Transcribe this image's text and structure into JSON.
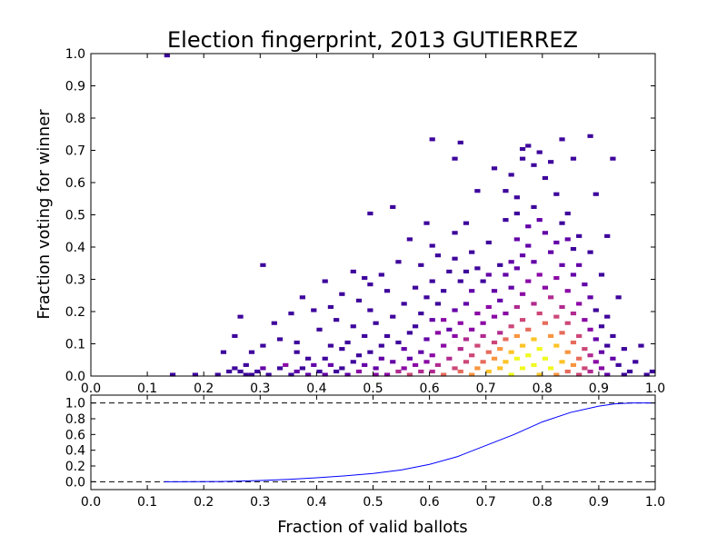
{
  "chart_data": [
    {
      "type": "heatmap",
      "title": "Election fingerprint, 2013 GUTIERREZ",
      "xlabel": "",
      "ylabel": "Fraction voting for winner",
      "xlim": [
        0.0,
        1.0
      ],
      "ylim": [
        0.0,
        1.0
      ],
      "xticks": [
        "0.0",
        "0.1",
        "0.2",
        "0.3",
        "0.4",
        "0.5",
        "0.6",
        "0.7",
        "0.8",
        "0.9",
        "1.0"
      ],
      "yticks": [
        "0.0",
        "0.1",
        "0.2",
        "0.3",
        "0.4",
        "0.5",
        "0.6",
        "0.7",
        "0.8",
        "0.9",
        "1.0"
      ],
      "colormap": "plasma",
      "bin_width": 0.01,
      "bin_height": 0.01,
      "cells": [
        [
          0.13,
          0.99,
          1
        ],
        [
          0.14,
          0.0,
          1
        ],
        [
          0.18,
          0.0,
          1
        ],
        [
          0.22,
          0.0,
          1
        ],
        [
          0.23,
          0.07,
          1
        ],
        [
          0.24,
          0.01,
          1
        ],
        [
          0.25,
          0.02,
          1
        ],
        [
          0.25,
          0.12,
          1
        ],
        [
          0.26,
          0.18,
          1
        ],
        [
          0.26,
          0.01,
          1
        ],
        [
          0.27,
          0.03,
          1
        ],
        [
          0.27,
          0.0,
          1
        ],
        [
          0.28,
          0.07,
          1
        ],
        [
          0.28,
          0.0,
          1
        ],
        [
          0.29,
          0.01,
          1
        ],
        [
          0.3,
          0.34,
          1
        ],
        [
          0.3,
          0.09,
          1
        ],
        [
          0.3,
          0.02,
          2
        ],
        [
          0.31,
          0.0,
          1
        ],
        [
          0.32,
          0.16,
          1
        ],
        [
          0.33,
          0.11,
          1
        ],
        [
          0.33,
          0.02,
          1
        ],
        [
          0.34,
          0.03,
          3
        ],
        [
          0.35,
          0.19,
          1
        ],
        [
          0.35,
          0.0,
          1
        ],
        [
          0.36,
          0.07,
          1
        ],
        [
          0.36,
          0.1,
          1
        ],
        [
          0.36,
          0.01,
          2
        ],
        [
          0.37,
          0.24,
          1
        ],
        [
          0.37,
          0.02,
          1
        ],
        [
          0.38,
          0.05,
          1
        ],
        [
          0.38,
          0.0,
          2
        ],
        [
          0.39,
          0.2,
          1
        ],
        [
          0.39,
          0.03,
          2
        ],
        [
          0.4,
          0.14,
          1
        ],
        [
          0.4,
          0.01,
          1
        ],
        [
          0.41,
          0.29,
          1
        ],
        [
          0.41,
          0.05,
          1
        ],
        [
          0.41,
          0.0,
          2
        ],
        [
          0.42,
          0.21,
          1
        ],
        [
          0.42,
          0.09,
          1
        ],
        [
          0.42,
          0.03,
          2
        ],
        [
          0.43,
          0.17,
          1
        ],
        [
          0.43,
          0.01,
          1
        ],
        [
          0.44,
          0.25,
          1
        ],
        [
          0.44,
          0.08,
          1
        ],
        [
          0.44,
          0.02,
          1
        ],
        [
          0.45,
          0.1,
          1
        ],
        [
          0.45,
          0.0,
          2
        ],
        [
          0.46,
          0.32,
          1
        ],
        [
          0.46,
          0.15,
          1
        ],
        [
          0.46,
          0.04,
          1
        ],
        [
          0.47,
          0.23,
          1
        ],
        [
          0.47,
          0.06,
          1
        ],
        [
          0.47,
          0.01,
          3
        ],
        [
          0.48,
          0.3,
          1
        ],
        [
          0.48,
          0.12,
          1
        ],
        [
          0.48,
          0.03,
          2
        ],
        [
          0.49,
          0.5,
          1
        ],
        [
          0.49,
          0.28,
          1
        ],
        [
          0.49,
          0.2,
          1
        ],
        [
          0.49,
          0.07,
          1
        ],
        [
          0.5,
          0.16,
          1
        ],
        [
          0.5,
          0.02,
          2
        ],
        [
          0.5,
          0.0,
          3
        ],
        [
          0.51,
          0.31,
          1
        ],
        [
          0.51,
          0.09,
          1
        ],
        [
          0.51,
          0.05,
          2
        ],
        [
          0.52,
          0.26,
          1
        ],
        [
          0.52,
          0.12,
          1
        ],
        [
          0.52,
          0.0,
          3
        ],
        [
          0.53,
          0.52,
          1
        ],
        [
          0.53,
          0.18,
          1
        ],
        [
          0.53,
          0.04,
          2
        ],
        [
          0.54,
          0.35,
          1
        ],
        [
          0.54,
          0.1,
          1
        ],
        [
          0.54,
          0.01,
          4
        ],
        [
          0.55,
          0.22,
          1
        ],
        [
          0.55,
          0.08,
          2
        ],
        [
          0.55,
          0.02,
          3
        ],
        [
          0.56,
          0.42,
          1
        ],
        [
          0.56,
          0.13,
          1
        ],
        [
          0.56,
          0.05,
          2
        ],
        [
          0.56,
          0.0,
          5
        ],
        [
          0.57,
          0.27,
          1
        ],
        [
          0.57,
          0.15,
          1
        ],
        [
          0.57,
          0.03,
          3
        ],
        [
          0.58,
          0.34,
          1
        ],
        [
          0.58,
          0.19,
          1
        ],
        [
          0.58,
          0.07,
          2
        ],
        [
          0.58,
          0.01,
          4
        ],
        [
          0.59,
          0.47,
          1
        ],
        [
          0.59,
          0.24,
          1
        ],
        [
          0.59,
          0.11,
          2
        ],
        [
          0.59,
          0.04,
          3
        ],
        [
          0.6,
          0.73,
          1
        ],
        [
          0.6,
          0.4,
          1
        ],
        [
          0.6,
          0.29,
          1
        ],
        [
          0.6,
          0.17,
          2
        ],
        [
          0.6,
          0.06,
          3
        ],
        [
          0.6,
          0.01,
          4
        ],
        [
          0.61,
          0.37,
          1
        ],
        [
          0.61,
          0.22,
          1
        ],
        [
          0.61,
          0.13,
          3
        ],
        [
          0.61,
          0.03,
          4
        ],
        [
          0.62,
          0.26,
          1
        ],
        [
          0.62,
          0.17,
          3
        ],
        [
          0.62,
          0.09,
          3
        ],
        [
          0.62,
          0.0,
          6
        ],
        [
          0.63,
          0.32,
          1
        ],
        [
          0.63,
          0.14,
          2
        ],
        [
          0.63,
          0.05,
          4
        ],
        [
          0.64,
          0.67,
          1
        ],
        [
          0.64,
          0.44,
          1
        ],
        [
          0.64,
          0.36,
          1
        ],
        [
          0.64,
          0.2,
          2
        ],
        [
          0.64,
          0.12,
          3
        ],
        [
          0.64,
          0.02,
          5
        ],
        [
          0.65,
          0.72,
          1
        ],
        [
          0.65,
          0.29,
          1
        ],
        [
          0.65,
          0.16,
          3
        ],
        [
          0.65,
          0.08,
          4
        ],
        [
          0.65,
          0.01,
          6
        ],
        [
          0.66,
          0.47,
          1
        ],
        [
          0.66,
          0.32,
          1
        ],
        [
          0.66,
          0.22,
          2
        ],
        [
          0.66,
          0.11,
          4
        ],
        [
          0.66,
          0.04,
          5
        ],
        [
          0.67,
          0.38,
          1
        ],
        [
          0.67,
          0.26,
          2
        ],
        [
          0.67,
          0.14,
          3
        ],
        [
          0.67,
          0.06,
          5
        ],
        [
          0.67,
          0.0,
          7
        ],
        [
          0.68,
          0.57,
          1
        ],
        [
          0.68,
          0.33,
          1
        ],
        [
          0.68,
          0.19,
          3
        ],
        [
          0.68,
          0.09,
          5
        ],
        [
          0.68,
          0.02,
          7
        ],
        [
          0.69,
          0.29,
          1
        ],
        [
          0.69,
          0.16,
          3
        ],
        [
          0.69,
          0.12,
          4
        ],
        [
          0.69,
          0.04,
          6
        ],
        [
          0.7,
          0.41,
          1
        ],
        [
          0.7,
          0.31,
          2
        ],
        [
          0.7,
          0.21,
          3
        ],
        [
          0.7,
          0.07,
          6
        ],
        [
          0.7,
          0.01,
          8
        ],
        [
          0.71,
          0.64,
          1
        ],
        [
          0.71,
          0.26,
          2
        ],
        [
          0.71,
          0.18,
          3
        ],
        [
          0.71,
          0.1,
          5
        ],
        [
          0.71,
          0.05,
          7
        ],
        [
          0.72,
          0.34,
          1
        ],
        [
          0.72,
          0.23,
          2
        ],
        [
          0.72,
          0.13,
          4
        ],
        [
          0.72,
          0.08,
          7
        ],
        [
          0.72,
          0.02,
          8
        ],
        [
          0.73,
          0.57,
          1
        ],
        [
          0.73,
          0.48,
          1
        ],
        [
          0.73,
          0.31,
          2
        ],
        [
          0.73,
          0.19,
          3
        ],
        [
          0.73,
          0.11,
          6
        ],
        [
          0.73,
          0.04,
          8
        ],
        [
          0.74,
          0.62,
          1
        ],
        [
          0.74,
          0.35,
          2
        ],
        [
          0.74,
          0.27,
          2
        ],
        [
          0.74,
          0.15,
          5
        ],
        [
          0.74,
          0.07,
          8
        ],
        [
          0.74,
          0.0,
          9
        ],
        [
          0.75,
          0.55,
          1
        ],
        [
          0.75,
          0.5,
          1
        ],
        [
          0.75,
          0.42,
          2
        ],
        [
          0.75,
          0.33,
          2
        ],
        [
          0.75,
          0.21,
          4
        ],
        [
          0.75,
          0.12,
          7
        ],
        [
          0.75,
          0.05,
          9
        ],
        [
          0.76,
          0.7,
          1
        ],
        [
          0.76,
          0.67,
          1
        ],
        [
          0.76,
          0.37,
          2
        ],
        [
          0.76,
          0.25,
          3
        ],
        [
          0.76,
          0.17,
          5
        ],
        [
          0.76,
          0.09,
          8
        ],
        [
          0.76,
          0.02,
          9
        ],
        [
          0.77,
          0.71,
          1
        ],
        [
          0.77,
          0.46,
          2
        ],
        [
          0.77,
          0.4,
          2
        ],
        [
          0.77,
          0.29,
          3
        ],
        [
          0.77,
          0.14,
          6
        ],
        [
          0.77,
          0.06,
          9
        ],
        [
          0.78,
          0.65,
          1
        ],
        [
          0.78,
          0.52,
          1
        ],
        [
          0.78,
          0.35,
          2
        ],
        [
          0.78,
          0.22,
          4
        ],
        [
          0.78,
          0.11,
          8
        ],
        [
          0.78,
          0.03,
          9
        ],
        [
          0.79,
          0.69,
          1
        ],
        [
          0.79,
          0.48,
          2
        ],
        [
          0.79,
          0.31,
          3
        ],
        [
          0.79,
          0.19,
          5
        ],
        [
          0.79,
          0.08,
          9
        ],
        [
          0.79,
          0.0,
          8
        ],
        [
          0.8,
          0.61,
          1
        ],
        [
          0.8,
          0.44,
          2
        ],
        [
          0.8,
          0.27,
          3
        ],
        [
          0.8,
          0.16,
          6
        ],
        [
          0.8,
          0.05,
          9
        ],
        [
          0.81,
          0.66,
          1
        ],
        [
          0.81,
          0.38,
          2
        ],
        [
          0.81,
          0.24,
          4
        ],
        [
          0.81,
          0.12,
          7
        ],
        [
          0.81,
          0.02,
          9
        ],
        [
          0.82,
          0.56,
          1
        ],
        [
          0.82,
          0.41,
          2
        ],
        [
          0.82,
          0.3,
          3
        ],
        [
          0.82,
          0.18,
          5
        ],
        [
          0.82,
          0.09,
          8
        ],
        [
          0.82,
          0.0,
          7
        ],
        [
          0.83,
          0.73,
          1
        ],
        [
          0.83,
          0.47,
          1
        ],
        [
          0.83,
          0.34,
          2
        ],
        [
          0.83,
          0.21,
          4
        ],
        [
          0.83,
          0.13,
          6
        ],
        [
          0.83,
          0.04,
          8
        ],
        [
          0.84,
          0.5,
          1
        ],
        [
          0.84,
          0.42,
          2
        ],
        [
          0.84,
          0.26,
          3
        ],
        [
          0.84,
          0.16,
          5
        ],
        [
          0.84,
          0.07,
          7
        ],
        [
          0.84,
          0.01,
          6
        ],
        [
          0.85,
          0.67,
          1
        ],
        [
          0.85,
          0.39,
          1
        ],
        [
          0.85,
          0.31,
          2
        ],
        [
          0.85,
          0.19,
          4
        ],
        [
          0.85,
          0.1,
          6
        ],
        [
          0.85,
          0.03,
          7
        ],
        [
          0.86,
          0.43,
          1
        ],
        [
          0.86,
          0.34,
          2
        ],
        [
          0.86,
          0.22,
          3
        ],
        [
          0.86,
          0.12,
          5
        ],
        [
          0.86,
          0.05,
          6
        ],
        [
          0.86,
          0.0,
          5
        ],
        [
          0.87,
          0.28,
          2
        ],
        [
          0.87,
          0.17,
          3
        ],
        [
          0.87,
          0.08,
          5
        ],
        [
          0.87,
          0.02,
          5
        ],
        [
          0.88,
          0.74,
          1
        ],
        [
          0.88,
          0.38,
          1
        ],
        [
          0.88,
          0.24,
          2
        ],
        [
          0.88,
          0.14,
          3
        ],
        [
          0.88,
          0.06,
          4
        ],
        [
          0.88,
          0.01,
          4
        ],
        [
          0.89,
          0.56,
          1
        ],
        [
          0.89,
          0.2,
          1
        ],
        [
          0.89,
          0.11,
          2
        ],
        [
          0.89,
          0.04,
          3
        ],
        [
          0.9,
          0.31,
          1
        ],
        [
          0.9,
          0.15,
          1
        ],
        [
          0.9,
          0.07,
          2
        ],
        [
          0.9,
          0.02,
          3
        ],
        [
          0.91,
          0.43,
          1
        ],
        [
          0.91,
          0.18,
          1
        ],
        [
          0.91,
          0.09,
          1
        ],
        [
          0.91,
          0.0,
          2
        ],
        [
          0.92,
          0.67,
          1
        ],
        [
          0.92,
          0.12,
          1
        ],
        [
          0.92,
          0.05,
          2
        ],
        [
          0.93,
          0.24,
          1
        ],
        [
          0.93,
          0.03,
          1
        ],
        [
          0.94,
          0.08,
          1
        ],
        [
          0.94,
          0.0,
          1
        ],
        [
          0.95,
          0.01,
          1
        ],
        [
          0.96,
          0.04,
          1
        ],
        [
          0.97,
          0.09,
          1
        ],
        [
          0.98,
          0.0,
          1
        ],
        [
          0.99,
          0.01,
          1
        ]
      ]
    },
    {
      "type": "line",
      "xlabel": "Fraction of valid ballots",
      "ylabel": "",
      "xlim": [
        0.0,
        1.0
      ],
      "ylim": [
        -0.1,
        1.1
      ],
      "xticks": [
        "0.0",
        "0.1",
        "0.2",
        "0.3",
        "0.4",
        "0.5",
        "0.6",
        "0.7",
        "0.8",
        "0.9",
        "1.0"
      ],
      "yticks": [
        "0.0",
        "0.2",
        "0.4",
        "0.6",
        "0.8",
        "1.0"
      ],
      "reference_lines": [
        0.0,
        1.0
      ],
      "line_color": "#0000ff",
      "x": [
        0.13,
        0.15,
        0.23,
        0.25,
        0.3,
        0.35,
        0.4,
        0.45,
        0.5,
        0.55,
        0.6,
        0.65,
        0.7,
        0.75,
        0.8,
        0.85,
        0.9,
        0.93,
        0.96,
        1.0
      ],
      "y": [
        0.0,
        0.0,
        0.002,
        0.005,
        0.015,
        0.03,
        0.05,
        0.075,
        0.105,
        0.15,
        0.22,
        0.32,
        0.46,
        0.6,
        0.76,
        0.88,
        0.96,
        0.99,
        1.0,
        1.0
      ]
    }
  ]
}
